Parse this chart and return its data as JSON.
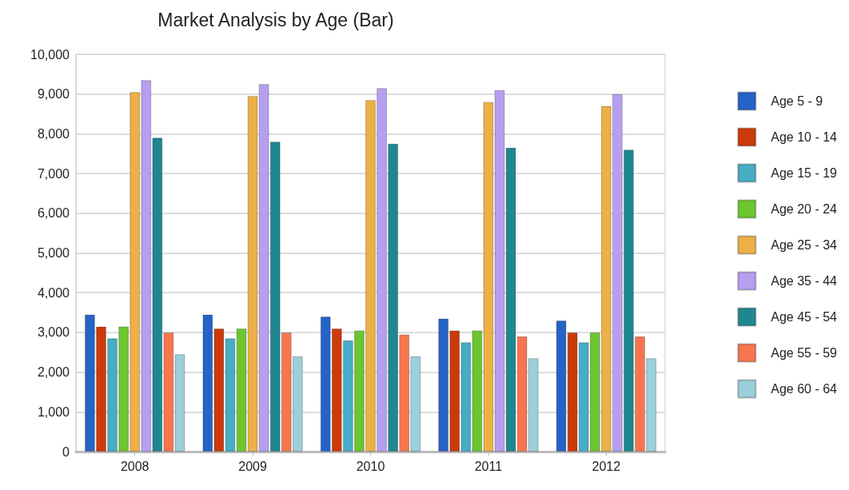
{
  "chart_data": {
    "type": "bar",
    "title": "Market Analysis by Age (Bar)",
    "categories": [
      "2008",
      "2009",
      "2010",
      "2011",
      "2012"
    ],
    "series": [
      {
        "name": "Age 5 - 9",
        "color": "#2563c9",
        "values": [
          3450,
          3450,
          3400,
          3350,
          3300
        ]
      },
      {
        "name": "Age 10 - 14",
        "color": "#cc3a0a",
        "values": [
          3150,
          3100,
          3100,
          3050,
          3000
        ]
      },
      {
        "name": "Age 15 - 19",
        "color": "#46adc4",
        "values": [
          2850,
          2850,
          2800,
          2750,
          2750
        ]
      },
      {
        "name": "Age 20 - 24",
        "color": "#6cc62f",
        "values": [
          3150,
          3100,
          3050,
          3050,
          3000
        ]
      },
      {
        "name": "Age 25 - 34",
        "color": "#edb046",
        "values": [
          9050,
          8950,
          8850,
          8800,
          8700
        ]
      },
      {
        "name": "Age 35 - 44",
        "color": "#b79ff0",
        "values": [
          9350,
          9250,
          9150,
          9100,
          9000
        ]
      },
      {
        "name": "Age 45 - 54",
        "color": "#1f8790",
        "values": [
          7900,
          7800,
          7750,
          7650,
          7600
        ]
      },
      {
        "name": "Age 55 - 59",
        "color": "#f7764f",
        "values": [
          3000,
          3000,
          2950,
          2900,
          2900
        ]
      },
      {
        "name": "Age 60 - 64",
        "color": "#9bcfda",
        "values": [
          2450,
          2400,
          2400,
          2350,
          2350
        ]
      }
    ],
    "ylim": [
      0,
      10000
    ],
    "yticks": [
      0,
      {
        "value": 1000,
        "label": "1,000"
      },
      {
        "value": 2000,
        "label": "2,000"
      },
      {
        "value": 3000,
        "label": "3,000"
      },
      {
        "value": 4000,
        "label": "4,000"
      },
      {
        "value": 5000,
        "label": "5,000"
      },
      {
        "value": 6000,
        "label": "6,000"
      },
      {
        "value": 7000,
        "label": "7,000"
      },
      {
        "value": 8000,
        "label": "8,000"
      },
      {
        "value": 9000,
        "label": "9,000"
      },
      {
        "value": 10000,
        "label": "10,000"
      }
    ],
    "grid": "y",
    "legend": "right"
  }
}
